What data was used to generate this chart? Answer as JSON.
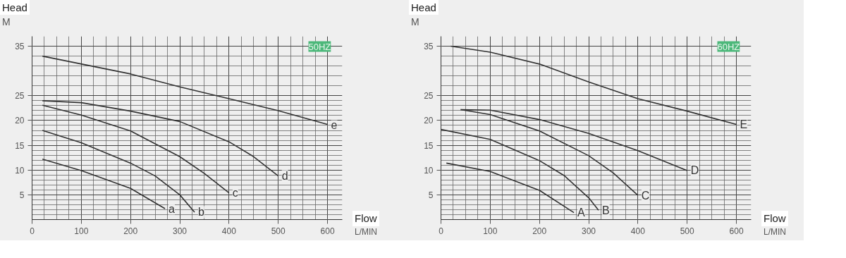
{
  "chart_data": [
    {
      "type": "line",
      "ylabel": "Head",
      "xlabel": "Flow",
      "annotations": [
        "M",
        "L/MIN",
        "50HZ"
      ],
      "xlim": [
        0,
        630
      ],
      "ylim": [
        0,
        37
      ],
      "xticks": [
        0,
        100,
        200,
        300,
        400,
        500,
        600
      ],
      "yticks": [
        5,
        10,
        15,
        20,
        25,
        35
      ],
      "grid": true,
      "marker": "none",
      "line_style": "solid",
      "series": [
        {
          "name": "a",
          "color": "#333333",
          "x": [
            21,
            100,
            200,
            270
          ],
          "values": [
            12.2,
            9.9,
            6.3,
            2.2
          ]
        },
        {
          "name": "b",
          "color": "#333333",
          "x": [
            21,
            100,
            200,
            250,
            300,
            330
          ],
          "values": [
            18.0,
            15.5,
            11.4,
            8.8,
            5.0,
            1.5
          ]
        },
        {
          "name": "c",
          "color": "#333333",
          "x": [
            21,
            100,
            200,
            300,
            350,
            400
          ],
          "values": [
            23.1,
            21.1,
            17.9,
            12.7,
            9.3,
            5.4
          ]
        },
        {
          "name": "d",
          "color": "#333333",
          "x": [
            21,
            100,
            200,
            300,
            400,
            450,
            500
          ],
          "values": [
            24.0,
            23.6,
            21.9,
            19.8,
            15.7,
            12.7,
            8.8
          ]
        },
        {
          "name": "e",
          "color": "#333333",
          "x": [
            21,
            200,
            300,
            400,
            500,
            600
          ],
          "values": [
            33.0,
            29.4,
            26.8,
            24.4,
            22.0,
            19.2
          ]
        }
      ]
    },
    {
      "type": "line",
      "ylabel": "Head",
      "xlabel": "Flow",
      "annotations": [
        "M",
        "L/MIN",
        "60HZ"
      ],
      "xlim": [
        0,
        630
      ],
      "ylim": [
        0,
        37
      ],
      "xticks": [
        0,
        100,
        200,
        300,
        400,
        500,
        600
      ],
      "yticks": [
        5,
        10,
        15,
        20,
        25,
        35
      ],
      "grid": true,
      "marker": "none",
      "line_style": "solid",
      "series": [
        {
          "name": "A",
          "color": "#333333",
          "x": [
            11,
            100,
            200,
            270
          ],
          "values": [
            11.4,
            9.7,
            5.9,
            1.4
          ]
        },
        {
          "name": "B",
          "color": "#333333",
          "x": [
            0,
            100,
            200,
            250,
            300,
            320
          ],
          "values": [
            18.2,
            16.2,
            11.9,
            8.9,
            4.4,
            1.9
          ]
        },
        {
          "name": "C",
          "color": "#333333",
          "x": [
            40,
            100,
            200,
            300,
            350,
            400
          ],
          "values": [
            22.2,
            21.2,
            17.9,
            12.9,
            9.4,
            4.9
          ]
        },
        {
          "name": "D",
          "color": "#333333",
          "x": [
            40,
            100,
            200,
            300,
            400,
            500
          ],
          "values": [
            22.2,
            22.1,
            20.2,
            17.4,
            13.9,
            9.9
          ]
        },
        {
          "name": "E",
          "color": "#333333",
          "x": [
            20,
            100,
            200,
            300,
            400,
            500,
            600
          ],
          "values": [
            35.0,
            33.8,
            31.4,
            27.8,
            24.4,
            21.9,
            19.2
          ]
        }
      ]
    }
  ]
}
